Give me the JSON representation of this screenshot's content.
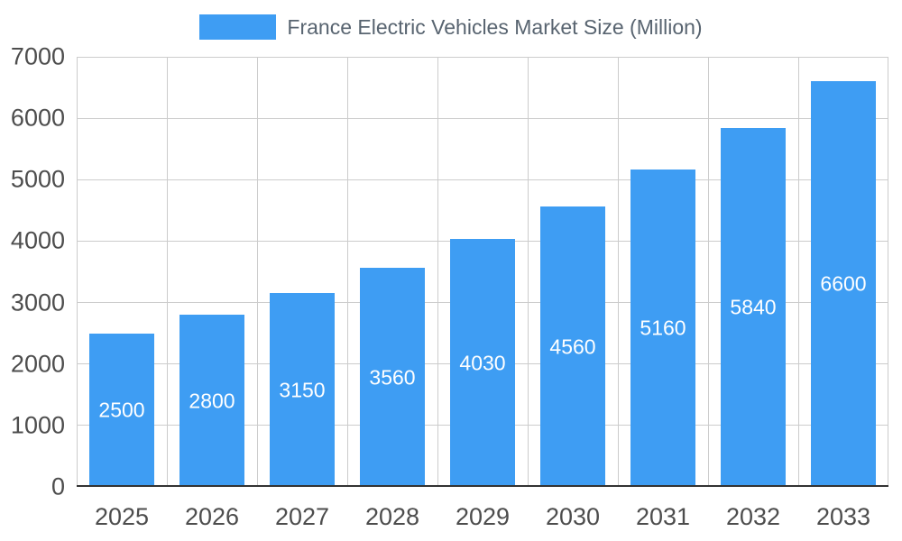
{
  "legend": {
    "position": "top",
    "label": "France Electric Vehicles Market Size (Million)"
  },
  "colors": {
    "bar": "#3E9DF3",
    "grid": "#cccccc",
    "baseline": "#333333",
    "axis_text": "#4d4d4d",
    "legend_text": "#586470",
    "bar_label_text": "#ffffff",
    "background": "#ffffff"
  },
  "chart_data": {
    "type": "bar",
    "title": "France Electric Vehicles Market Size (Million)",
    "categories": [
      "2025",
      "2026",
      "2027",
      "2028",
      "2029",
      "2030",
      "2031",
      "2032",
      "2033"
    ],
    "values": [
      2500,
      2800,
      3150,
      3560,
      4030,
      4560,
      5160,
      5840,
      6600
    ],
    "series_name": "France Electric Vehicles Market Size (Million)",
    "xlabel": "",
    "ylabel": "",
    "ylim": [
      0,
      7000
    ],
    "yticks": [
      0,
      1000,
      2000,
      3000,
      4000,
      5000,
      6000,
      7000
    ],
    "grid": true,
    "legend_position": "top",
    "bar_value_labels": "inside-center-white"
  }
}
